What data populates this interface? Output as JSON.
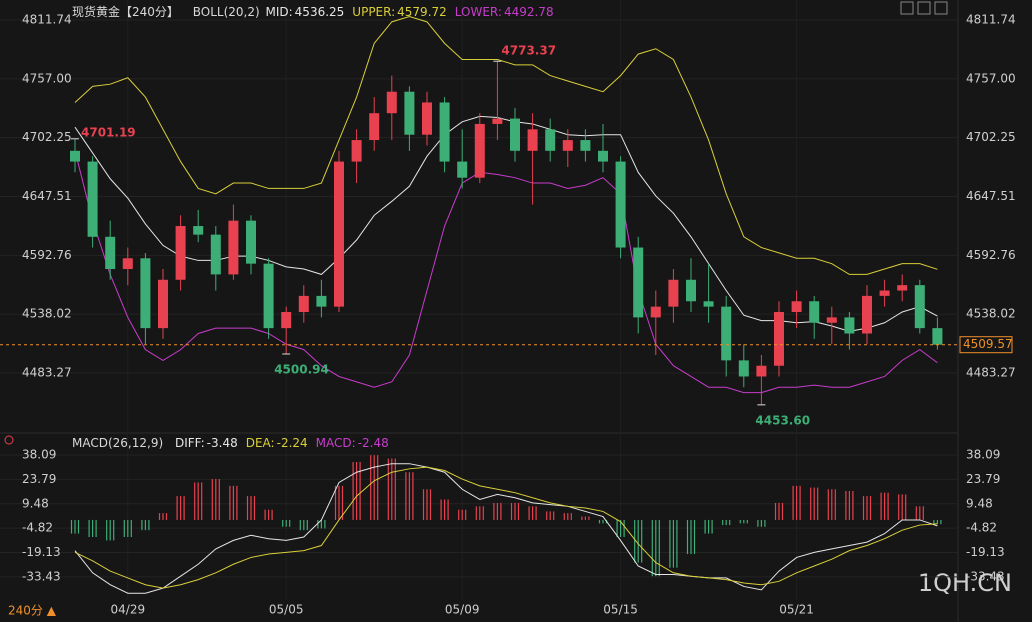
{
  "header": {
    "title": "现货黄金【240分】",
    "period": "240分 ▲",
    "watermark": "1QH.CN"
  },
  "chart_data": [
    {
      "type": "candlestick",
      "categories": [
        null,
        null,
        null,
        "04/29",
        null,
        null,
        null,
        null,
        null,
        null,
        null,
        null,
        "05/05",
        null,
        null,
        null,
        null,
        null,
        null,
        null,
        null,
        null,
        "05/09",
        null,
        null,
        null,
        null,
        null,
        null,
        null,
        null,
        "05/15",
        null,
        null,
        null,
        null,
        null,
        null,
        null,
        null,
        null,
        "05/21",
        null,
        null,
        null,
        null,
        null,
        null,
        null,
        null
      ],
      "open": [
        4690,
        4680,
        4610,
        4580,
        4590,
        4525,
        4570,
        4620,
        4612,
        4575,
        4625,
        4585,
        4525,
        4540,
        4555,
        4545,
        4680,
        4700,
        4725,
        4745,
        4705,
        4735,
        4680,
        4665,
        4715,
        4720,
        4690,
        4710,
        4690,
        4700,
        4690,
        4680,
        4600,
        4535,
        4545,
        4570,
        4550,
        4545,
        4495,
        4480,
        4490,
        4540,
        4550,
        4530,
        4535,
        4520,
        4555,
        4560,
        4565,
        4525
      ],
      "high": [
        4701.19,
        4685,
        4625,
        4600,
        4595,
        4580,
        4630,
        4635,
        4620,
        4640,
        4630,
        4590,
        4545,
        4565,
        4570,
        4690,
        4710,
        4740,
        4760,
        4750,
        4745,
        4740,
        4710,
        4725,
        4773.37,
        4730,
        4725,
        4720,
        4710,
        4710,
        4715,
        4685,
        4610,
        4560,
        4580,
        4590,
        4585,
        4555,
        4510,
        4500,
        4550,
        4560,
        4555,
        4545,
        4540,
        4565,
        4570,
        4575,
        4570,
        4535
      ],
      "low": [
        4670,
        4600,
        4570,
        4565,
        4510,
        4515,
        4560,
        4605,
        4560,
        4570,
        4575,
        4515,
        4500.94,
        4530,
        4535,
        4540,
        4660,
        4690,
        4700,
        4690,
        4695,
        4670,
        4655,
        4660,
        4700,
        4680,
        4640,
        4680,
        4675,
        4680,
        4670,
        4590,
        4520,
        4500,
        4530,
        4540,
        4530,
        4480,
        4470,
        4453.6,
        4480,
        4525,
        4515,
        4510,
        4505,
        4510,
        4545,
        4550,
        4520,
        4505
      ],
      "close": [
        4680,
        4610,
        4580,
        4590,
        4525,
        4570,
        4620,
        4612,
        4575,
        4625,
        4585,
        4525,
        4540,
        4555,
        4545,
        4680,
        4700,
        4725,
        4745,
        4705,
        4735,
        4680,
        4665,
        4715,
        4720,
        4690,
        4710,
        4690,
        4700,
        4690,
        4680,
        4600,
        4535,
        4545,
        4570,
        4550,
        4545,
        4495,
        4480,
        4490,
        4540,
        4550,
        4530,
        4535,
        4520,
        4555,
        4560,
        4565,
        4525,
        4509.57
      ],
      "up_color": "#e8414f",
      "down_color": "#3dae76",
      "last_color": "#f0902a",
      "annotations": [
        "4701.19",
        "4500.94",
        "4773.37",
        "4453.60"
      ],
      "ylim": [
        4430.2,
        4830.35
      ],
      "yticks": [
        4811.74,
        {
          "value": 4757,
          "label": "4757.00"
        },
        4702.25,
        4647.51,
        4592.76,
        4538.02,
        4483.27
      ],
      "grid": true,
      "indicator": {
        "name": "BOLL(20,2)",
        "series": [
          {
            "name": "MID:",
            "color": "#e6e6e6",
            "values": [
              4712,
              4688,
              4664,
              4646,
              4622,
              4602,
              4592,
              4588,
              4588,
              4592,
              4592,
              4588,
              4582,
              4580,
              4575,
              4590,
              4607,
              4630,
              4643,
              4657,
              4685,
              4705,
              4717,
              4722,
              4721,
              4717,
              4715,
              4710,
              4705,
              4704,
              4705,
              4705,
              4670,
              4648,
              4632,
              4610,
              4585,
              4560,
              4537,
              4532,
              4532,
              4530,
              4531,
              4527,
              4522,
              4525,
              4530,
              4540,
              4545,
              4536.25
            ]
          },
          {
            "name": "UPPER:",
            "color": "#d9cf3a",
            "values": [
              4735,
              4750,
              4752,
              4758,
              4740,
              4710,
              4680,
              4655,
              4650,
              4660,
              4660,
              4655,
              4655,
              4655,
              4660,
              4700,
              4740,
              4790,
              4810,
              4815,
              4810,
              4790,
              4775,
              4775,
              4775,
              4770,
              4770,
              4760,
              4755,
              4750,
              4745,
              4760,
              4780,
              4785,
              4775,
              4740,
              4700,
              4650,
              4610,
              4600,
              4595,
              4590,
              4590,
              4585,
              4575,
              4575,
              4580,
              4585,
              4585,
              4579.72
            ]
          },
          {
            "name": "LOWER:",
            "color": "#c83ccc",
            "values": [
              4690,
              4625,
              4575,
              4535,
              4505,
              4495,
              4505,
              4520,
              4525,
              4525,
              4525,
              4520,
              4510,
              4505,
              4490,
              4480,
              4475,
              4470,
              4475,
              4500,
              4560,
              4620,
              4660,
              4670,
              4668,
              4665,
              4660,
              4660,
              4655,
              4658,
              4665,
              4650,
              4560,
              4510,
              4490,
              4480,
              4470,
              4470,
              4465,
              4465,
              4470,
              4470,
              4472,
              4470,
              4470,
              4475,
              4480,
              4495,
              4505,
              4492.78
            ]
          }
        ]
      }
    },
    {
      "type": "macd",
      "title": "MACD(26,12,9)",
      "up_color": "#e8414f",
      "down_color": "#3dae76",
      "ylim": [
        -46.96,
        46.9
      ],
      "yticks": [
        38.09,
        23.79,
        9.48,
        -4.82,
        -19.13,
        -33.43
      ],
      "series": [
        {
          "name": "DIFF:",
          "color": "#e6e6e6",
          "values": [
            -18,
            -31,
            -38,
            -43,
            -43,
            -40,
            -33,
            -26,
            -17,
            -12,
            -9,
            -11,
            -12,
            -10,
            0,
            22,
            28,
            31,
            33,
            33,
            31,
            28,
            18,
            12,
            15,
            13,
            10,
            9,
            8,
            5,
            2,
            -12,
            -27,
            -32,
            -32,
            -33,
            -34,
            -34,
            -39,
            -41,
            -30,
            -22,
            -19,
            -17,
            -15,
            -13,
            -8,
            0,
            0,
            -3.48
          ]
        },
        {
          "name": "DEA:",
          "color": "#d9cf3a",
          "values": [
            -19,
            -24,
            -30,
            -34,
            -38,
            -40,
            -38,
            -35,
            -31,
            -26,
            -22,
            -20,
            -19,
            -18,
            -15,
            0,
            14,
            23,
            28,
            30,
            31,
            29,
            24,
            20,
            18,
            16,
            13,
            10,
            8,
            7,
            5,
            -1,
            -14,
            -25,
            -31,
            -33,
            -34,
            -35,
            -37,
            -38,
            -36,
            -31,
            -27,
            -23,
            -18,
            -15,
            -11,
            -6,
            -3,
            -2.24
          ]
        },
        {
          "name": "MACD:",
          "color": "#c83ccc",
          "values": [
            -8,
            -10,
            -12,
            -10,
            -6,
            4,
            14,
            22,
            24,
            20,
            14,
            6,
            -4,
            -6,
            -5,
            20,
            34,
            38,
            36,
            28,
            18,
            12,
            6,
            8,
            10,
            10,
            8,
            5,
            4,
            2,
            -2,
            -10,
            -25,
            -33,
            -28,
            -20,
            -8,
            -3,
            -2,
            -4,
            10,
            20,
            19,
            18,
            17,
            14,
            16,
            15,
            8,
            -2.48
          ]
        }
      ]
    }
  ]
}
